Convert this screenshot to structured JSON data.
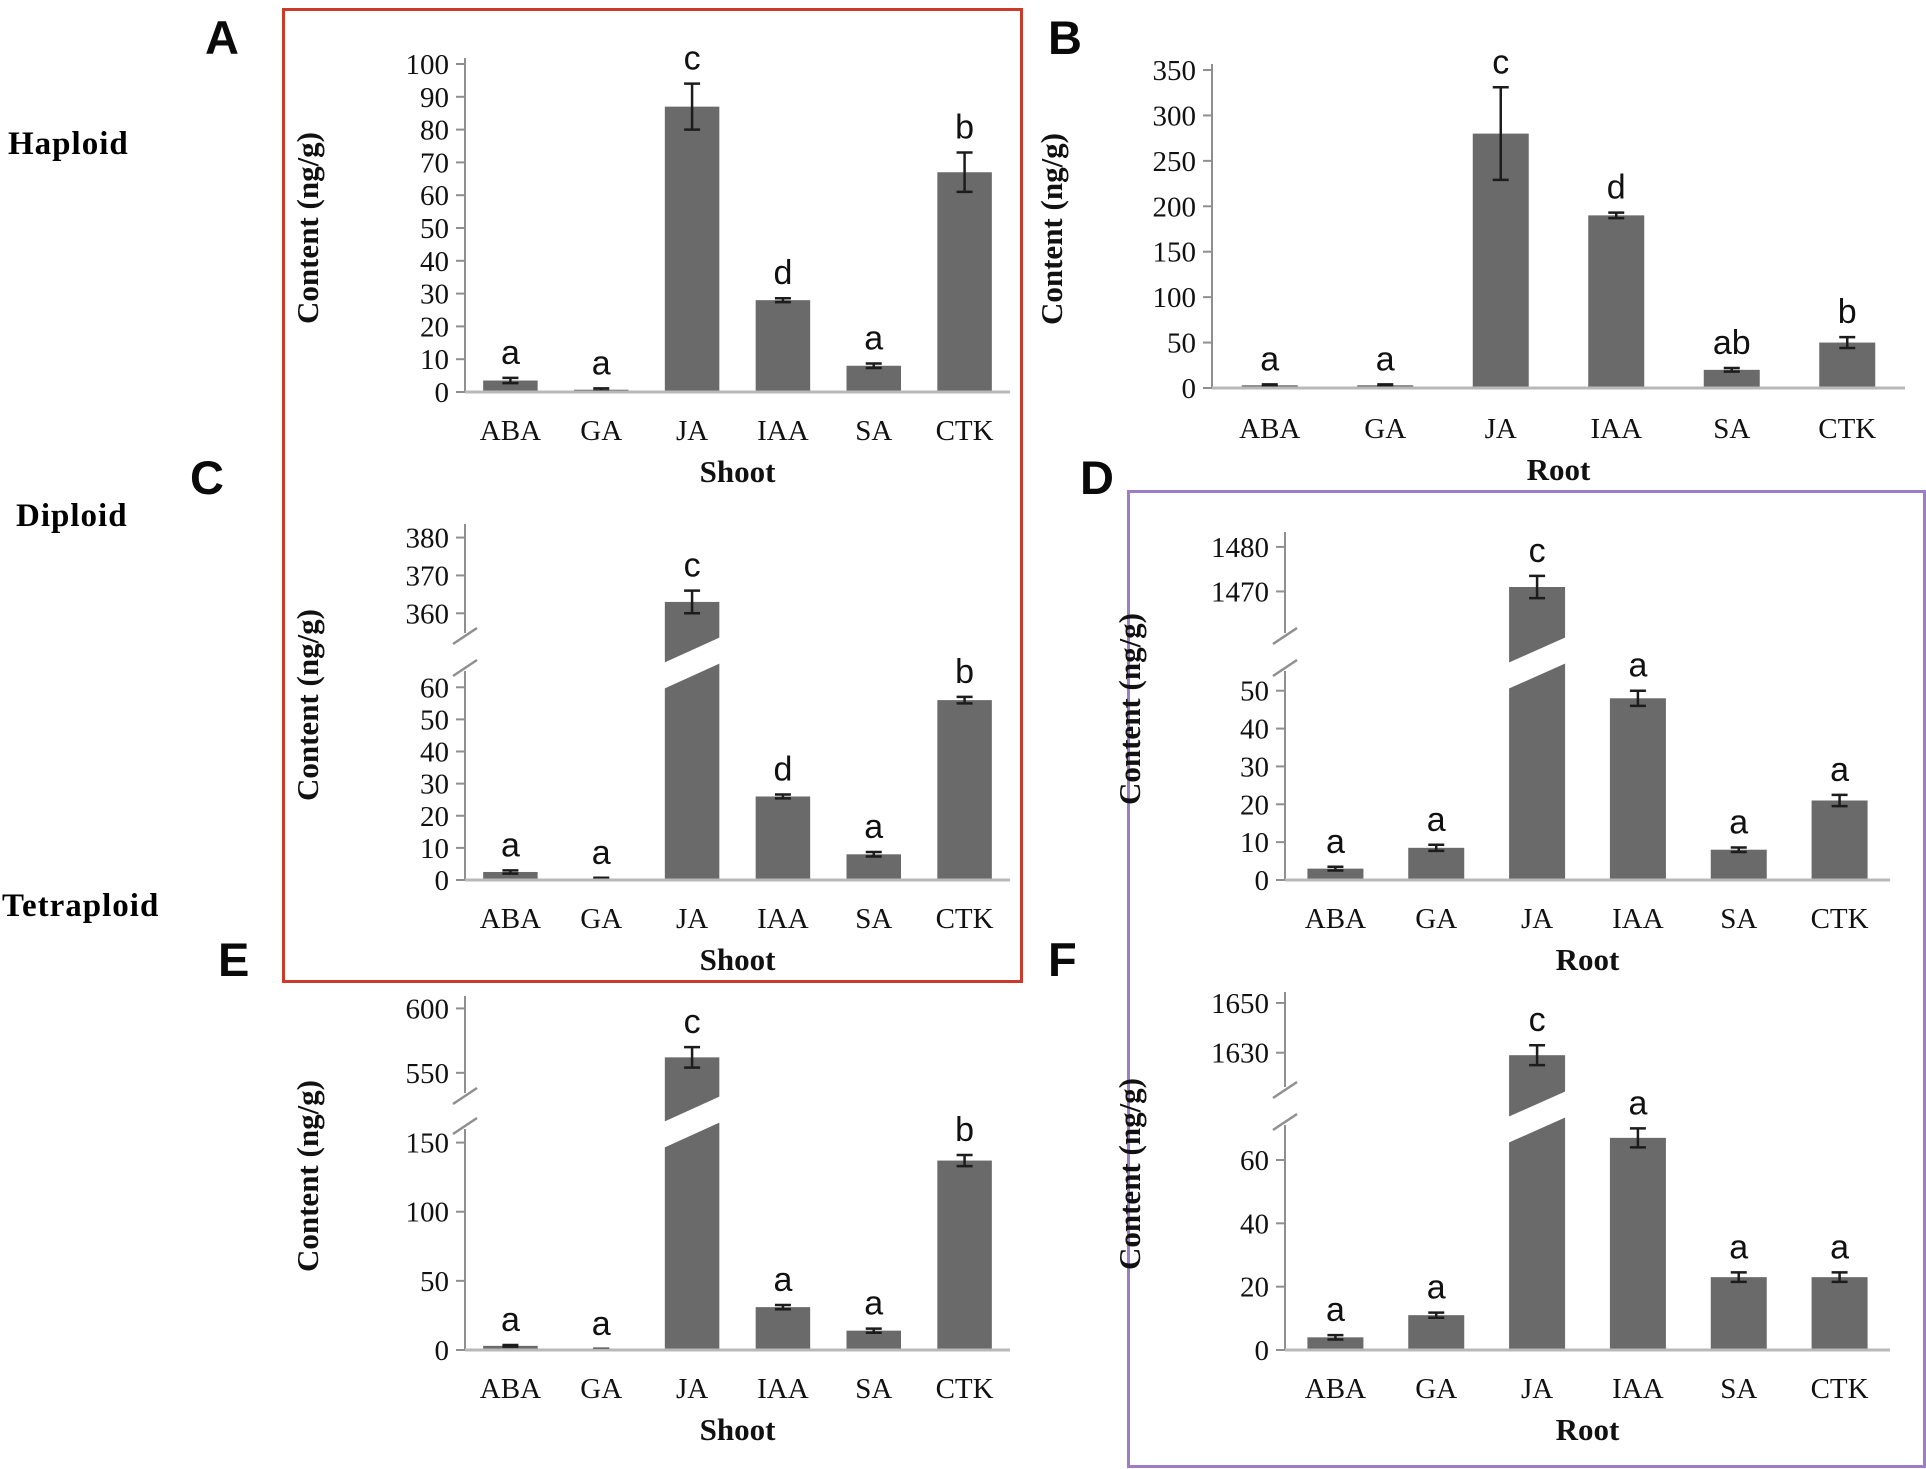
{
  "rows": [
    {
      "label": "Haploid"
    },
    {
      "label": "Diploid"
    },
    {
      "label": "Tetraploid"
    }
  ],
  "colors": {
    "bar": "#6a6a6a",
    "error_bar": "#1c1c1c",
    "axis": "#8f8f8f",
    "baseline": "#b8b8b8",
    "text": "#111111",
    "red_box": "#cb3b2a",
    "purple_box": "#9d7ec6",
    "background": "#ffffff"
  },
  "chart_data": [
    {
      "type": "bar",
      "panel": "A",
      "group": "Haploid",
      "xlabel": "Shoot",
      "ylabel": "Content (ng/g)",
      "categories": [
        "ABA",
        "GA",
        "JA",
        "IAA",
        "SA",
        "CTK"
      ],
      "values": [
        3.5,
        0.7,
        87,
        28,
        8,
        67
      ],
      "errors": [
        0.8,
        0.4,
        7,
        0.6,
        0.7,
        6
      ],
      "sig_letters": [
        "a",
        "a",
        "c",
        "d",
        "a",
        "b"
      ],
      "axis": {
        "break": false,
        "min": 0,
        "max": 100,
        "step": 10
      },
      "grid": false,
      "legend": "none"
    },
    {
      "type": "bar",
      "panel": "B",
      "group": "Haploid",
      "xlabel": "Root",
      "ylabel": "Content (ng/g)",
      "categories": [
        "ABA",
        "GA",
        "JA",
        "IAA",
        "SA",
        "CTK"
      ],
      "values": [
        3,
        3,
        280,
        190,
        20,
        50
      ],
      "errors": [
        1,
        1,
        51,
        3,
        2,
        6
      ],
      "sig_letters": [
        "a",
        "a",
        "c",
        "d",
        "ab",
        "b"
      ],
      "axis": {
        "break": false,
        "min": 0,
        "max": 350,
        "step": 50
      },
      "grid": false,
      "legend": "none"
    },
    {
      "type": "bar",
      "panel": "C",
      "group": "Diploid",
      "xlabel": "Shoot",
      "ylabel": "Content (ng/g)",
      "categories": [
        "ABA",
        "GA",
        "JA",
        "IAA",
        "SA",
        "CTK"
      ],
      "values": [
        2.5,
        0.4,
        363,
        26,
        8,
        56
      ],
      "errors": [
        0.5,
        0.3,
        3,
        0.6,
        0.7,
        1
      ],
      "sig_letters": [
        "a",
        "a",
        "c",
        "d",
        "a",
        "b"
      ],
      "axis": {
        "break": true,
        "lower": {
          "min": 0,
          "max": 60,
          "step": 10
        },
        "upper": {
          "ticks": [
            360,
            370,
            380
          ]
        }
      },
      "grid": false,
      "legend": "none"
    },
    {
      "type": "bar",
      "panel": "D",
      "group": "Diploid",
      "xlabel": "Root",
      "ylabel": "Content (ng/g)",
      "categories": [
        "ABA",
        "GA",
        "JA",
        "IAA",
        "SA",
        "CTK"
      ],
      "values": [
        3,
        8.5,
        1471,
        48,
        8,
        21
      ],
      "errors": [
        0.5,
        0.8,
        2.5,
        2,
        0.6,
        1.5
      ],
      "sig_letters": [
        "a",
        "a",
        "c",
        "a",
        "a",
        "a"
      ],
      "axis": {
        "break": true,
        "lower": {
          "min": 0,
          "max": 50,
          "step": 10
        },
        "upper": {
          "ticks": [
            1470,
            1480
          ]
        }
      },
      "grid": false,
      "legend": "none"
    },
    {
      "type": "bar",
      "panel": "E",
      "group": "Tetraploid",
      "xlabel": "Shoot",
      "ylabel": "Content (ng/g)",
      "categories": [
        "ABA",
        "GA",
        "JA",
        "IAA",
        "SA",
        "CTK"
      ],
      "values": [
        3,
        0.5,
        562,
        31,
        14,
        137
      ],
      "errors": [
        0.6,
        0.3,
        8,
        1.5,
        1.5,
        4
      ],
      "sig_letters": [
        "a",
        "a",
        "c",
        "a",
        "a",
        "b"
      ],
      "axis": {
        "break": true,
        "lower": {
          "min": 0,
          "max": 150,
          "step": 50
        },
        "upper": {
          "ticks": [
            550,
            600
          ]
        }
      },
      "grid": false,
      "legend": "none"
    },
    {
      "type": "bar",
      "panel": "F",
      "group": "Tetraploid",
      "xlabel": "Root",
      "ylabel": "Content (ng/g)",
      "categories": [
        "ABA",
        "GA",
        "JA",
        "IAA",
        "SA",
        "CTK"
      ],
      "values": [
        4,
        11,
        1629,
        67,
        23,
        23
      ],
      "errors": [
        0.7,
        0.8,
        4,
        3,
        1.5,
        1.5
      ],
      "sig_letters": [
        "a",
        "a",
        "c",
        "a",
        "a",
        "a"
      ],
      "axis": {
        "break": true,
        "lower": {
          "min": 0,
          "max": 60,
          "step": 20
        },
        "upper": {
          "ticks": [
            1630,
            1650
          ]
        }
      },
      "grid": false,
      "legend": "none"
    }
  ]
}
